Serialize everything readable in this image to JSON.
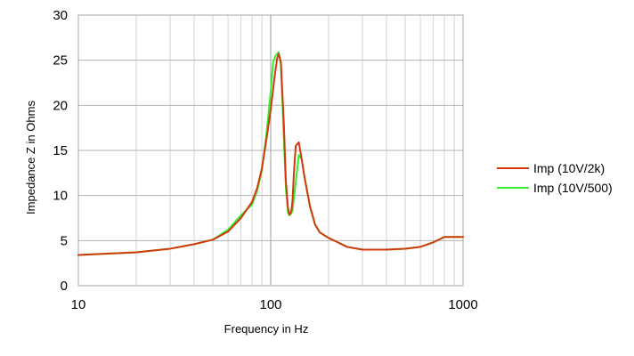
{
  "chart_data": {
    "type": "line",
    "xscale": "log",
    "xlabel": "Frequency in Hz",
    "ylabel": "Impedance Z in Ohms",
    "xlim": [
      10,
      1000
    ],
    "ylim": [
      0,
      30
    ],
    "x_ticks": [
      10,
      100,
      1000
    ],
    "x_tick_labels": [
      "10",
      "100",
      "1000"
    ],
    "y_ticks": [
      0,
      5,
      10,
      15,
      20,
      25,
      30
    ],
    "y_tick_labels": [
      "0",
      "5",
      "10",
      "15",
      "20",
      "25",
      "30"
    ],
    "grid": true,
    "legend_position": "right",
    "series": [
      {
        "name": "Imp (10V/2k)",
        "color": "#d4380d",
        "x": [
          10,
          20,
          30,
          40,
          50,
          60,
          70,
          80,
          85,
          90,
          95,
          100,
          105,
          108,
          110,
          113,
          117,
          120,
          123,
          125,
          128,
          130,
          132,
          135,
          140,
          145,
          150,
          160,
          170,
          180,
          200,
          250,
          300,
          400,
          500,
          600,
          700,
          800,
          1000
        ],
        "y": [
          3.4,
          3.7,
          4.1,
          4.6,
          5.1,
          6.0,
          7.5,
          9.3,
          10.8,
          13.0,
          16.2,
          19.5,
          23.3,
          25.2,
          25.7,
          24.8,
          18.0,
          11.5,
          8.6,
          7.9,
          8.2,
          9.6,
          12.5,
          15.5,
          15.9,
          14.0,
          12.0,
          8.8,
          6.8,
          5.9,
          5.3,
          4.3,
          4.0,
          4.0,
          4.1,
          4.3,
          4.8,
          5.4,
          5.4
        ]
      },
      {
        "name": "Imp (10V/500)",
        "color": "#33ee33",
        "x": [
          10,
          20,
          30,
          40,
          50,
          60,
          70,
          80,
          85,
          90,
          95,
          100,
          103,
          106,
          110,
          113,
          117,
          120,
          123,
          125,
          128,
          130,
          135,
          140,
          145,
          150,
          160,
          170,
          180,
          200,
          250,
          300,
          400,
          500,
          600,
          700,
          800,
          1000
        ],
        "y": [
          3.4,
          3.7,
          4.1,
          4.6,
          5.1,
          6.2,
          7.8,
          9.0,
          10.5,
          12.8,
          16.8,
          21.5,
          24.8,
          25.5,
          25.9,
          24.5,
          16.5,
          10.7,
          8.1,
          7.8,
          8.0,
          8.4,
          11.5,
          14.5,
          14.0,
          12.0,
          8.8,
          6.8,
          5.9,
          5.3,
          4.3,
          4.0,
          4.0,
          4.1,
          4.3,
          4.8,
          5.4,
          5.4
        ]
      }
    ]
  }
}
